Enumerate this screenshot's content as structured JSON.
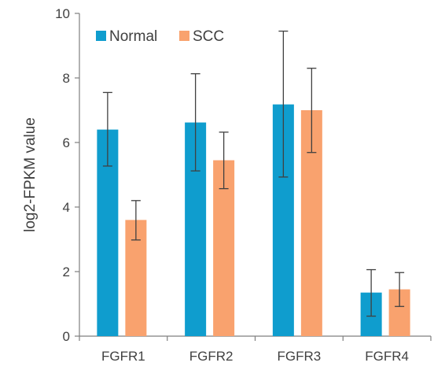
{
  "chart_data": {
    "type": "bar",
    "title": "",
    "xlabel": "",
    "ylabel": "log2-FPKM value",
    "ylim": [
      0,
      10
    ],
    "yticks": [
      0,
      2,
      4,
      6,
      8,
      10
    ],
    "categories": [
      "FGFR1",
      "FGFR2",
      "FGFR3",
      "FGFR4"
    ],
    "series": [
      {
        "name": "Normal",
        "color": "#0f9dce",
        "values": [
          6.4,
          6.62,
          7.18,
          1.35
        ],
        "error_low": [
          5.27,
          5.12,
          4.93,
          0.62
        ],
        "error_high": [
          7.55,
          8.13,
          9.45,
          2.06
        ]
      },
      {
        "name": "SCC",
        "color": "#f9a26e",
        "values": [
          3.6,
          5.45,
          7.0,
          1.45
        ],
        "error_low": [
          2.98,
          4.57,
          5.69,
          0.92
        ],
        "error_high": [
          4.2,
          6.32,
          8.3,
          1.97
        ]
      }
    ],
    "legend_position": "top-left",
    "grid": false
  }
}
